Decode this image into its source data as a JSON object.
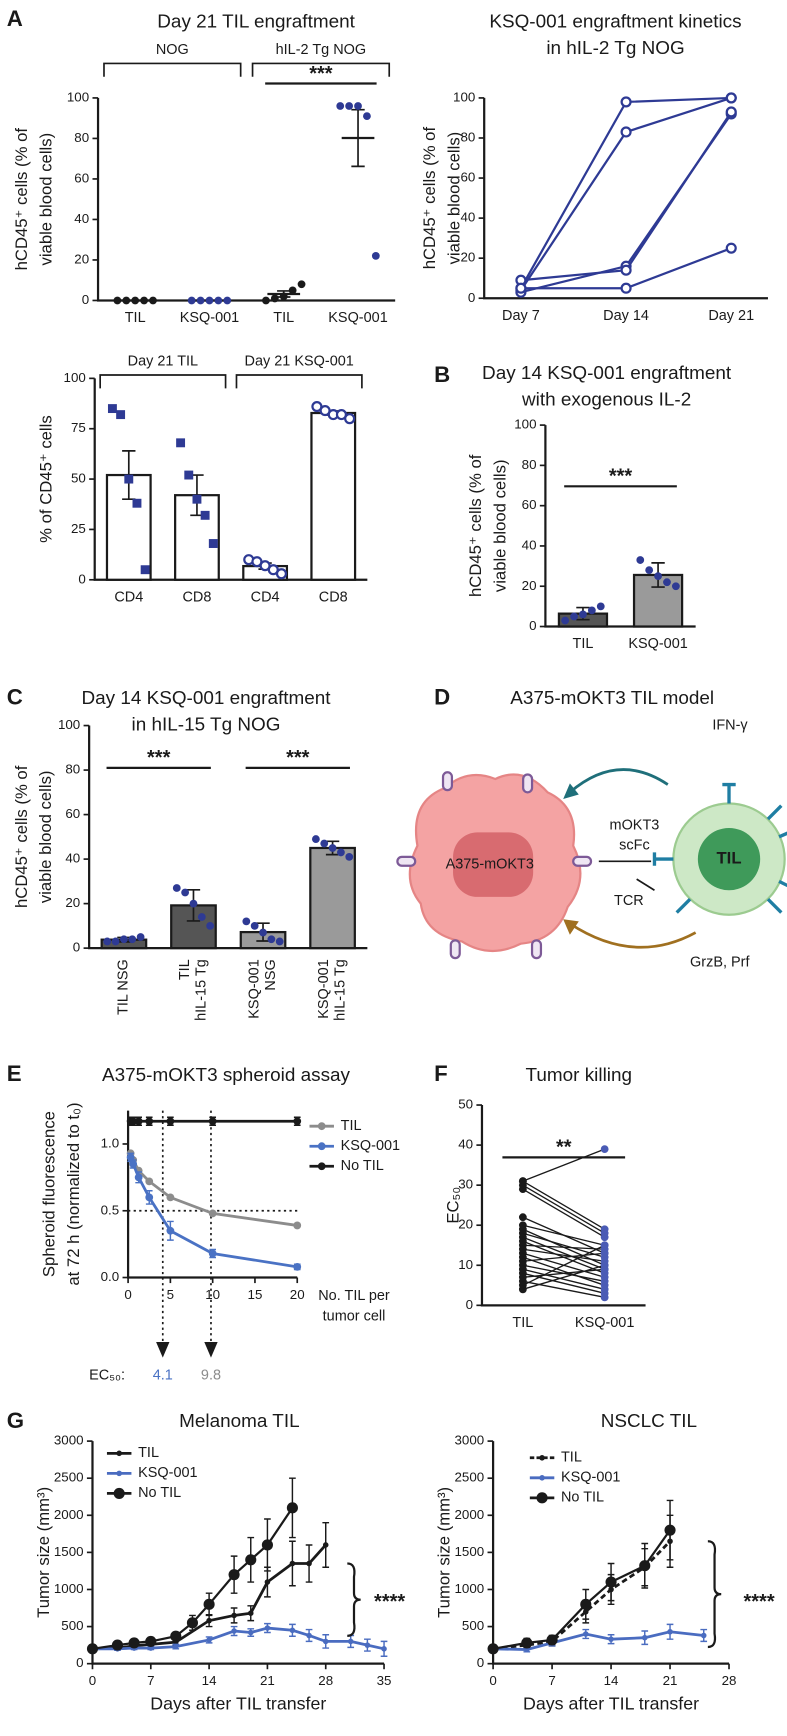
{
  "panel_labels": [
    "A",
    "B",
    "C",
    "D",
    "E",
    "F",
    "G"
  ],
  "chart_data": [
    {
      "type": "dot",
      "title": [
        "Day 21 TIL engraftment"
      ],
      "ylabel": [
        "hCD45⁺ cells (% of",
        "viable blood cells)"
      ],
      "categories": [
        "TIL",
        "KSQ-001",
        "TIL",
        "KSQ-001"
      ],
      "groups": [
        "NOG",
        "hIL-2 Tg NOG"
      ],
      "points": [
        [
          0,
          0,
          0,
          0,
          0
        ],
        [
          0,
          0,
          0,
          0,
          0
        ],
        [
          0,
          1,
          2,
          5,
          8
        ],
        [
          96,
          96,
          96,
          91,
          22
        ]
      ],
      "means": [
        0,
        0,
        3.2,
        80.2
      ],
      "errors": [
        0,
        0,
        1.5,
        14
      ],
      "colors": [
        "#1a1a1a",
        "#2e3a94",
        "#1a1a1a",
        "#2e3a94"
      ],
      "markers": [
        "circle",
        "circle",
        "circle",
        "circle"
      ],
      "significance": [
        {
          "label": "***",
          "between": [
            2,
            3
          ]
        }
      ],
      "ylim": [
        0,
        100
      ],
      "yticks": [
        0,
        20,
        40,
        60,
        80,
        100
      ]
    },
    {
      "type": "line",
      "title": [
        "KSQ-001 engraftment kinetics",
        "in hIL-2 Tg NOG"
      ],
      "ylabel": [
        "hCD45⁺ cells (% of",
        "viable blood cells)"
      ],
      "categories": [
        "Day 7",
        "Day 14",
        "Day 21"
      ],
      "marker": "open-circle",
      "series": [
        {
          "color": "#2e3a94",
          "values": [
            5,
            98,
            100
          ]
        },
        {
          "color": "#2e3a94",
          "values": [
            4,
            83,
            100
          ]
        },
        {
          "color": "#2e3a94",
          "values": [
            3,
            16,
            92
          ]
        },
        {
          "color": "#2e3a94",
          "values": [
            9,
            14,
            93
          ]
        },
        {
          "color": "#2e3a94",
          "values": [
            5,
            5,
            25
          ]
        }
      ],
      "ylim": [
        0,
        100
      ],
      "yticks": [
        0,
        20,
        40,
        60,
        80,
        100
      ]
    },
    {
      "type": "bar",
      "ylabel": [
        "% of CD45⁺ cells"
      ],
      "categories": [
        "CD4",
        "CD8",
        "CD4",
        "CD8"
      ],
      "groups": [
        "Day 21 TIL",
        "Day 21 KSQ-001"
      ],
      "points": [
        [
          85,
          82,
          50,
          38,
          5
        ],
        [
          68,
          52,
          40,
          32,
          18
        ],
        [
          10,
          9,
          7,
          5,
          3
        ],
        [
          86,
          84,
          82,
          82,
          80
        ]
      ],
      "means": [
        52,
        42,
        6.8,
        82.8
      ],
      "errors": [
        12,
        10,
        1.5,
        1
      ],
      "colors": [
        "#2e3a94",
        "#2e3a94",
        "#2e3a94",
        "#2e3a94"
      ],
      "markers": [
        "square",
        "square",
        "open-circle",
        "open-circle"
      ],
      "bar_colors": [
        "#ffffff",
        "#ffffff",
        "#ffffff",
        "#ffffff"
      ],
      "ylim": [
        0,
        100
      ],
      "yticks": [
        0,
        25,
        50,
        75,
        100
      ]
    },
    {
      "type": "bar",
      "title": [
        "Day 14 KSQ-001 engraftment",
        "with exogenous IL-2"
      ],
      "ylabel": [
        "hCD45⁺ cells (% of",
        "viable blood cells)"
      ],
      "categories": [
        "TIL",
        "KSQ-001"
      ],
      "points": [
        [
          3,
          5,
          6,
          8,
          10
        ],
        [
          33,
          28,
          25,
          22,
          20
        ]
      ],
      "means": [
        6.4,
        25.6
      ],
      "errors": [
        3,
        6
      ],
      "colors": [
        "#2e3a94",
        "#2e3a94"
      ],
      "markers": [
        "circle",
        "circle"
      ],
      "bar_colors": [
        "#555555",
        "#9a9a9a"
      ],
      "significance": [
        {
          "label": "***",
          "between": [
            0,
            1
          ]
        }
      ],
      "ylim": [
        0,
        100
      ],
      "yticks": [
        0,
        20,
        40,
        60,
        80,
        100
      ]
    },
    {
      "type": "bar",
      "title": [
        "Day 14 KSQ-001 engraftment",
        "in hIL-15 Tg NOG"
      ],
      "ylabel": [
        "hCD45⁺ cells (% of",
        "viable blood cells)"
      ],
      "categories": [
        [
          "TIL NSG"
        ],
        [
          "TIL",
          "hIL-15 Tg"
        ],
        [
          "KSQ-001",
          "NSG"
        ],
        [
          "KSQ-001",
          "hIL-15 Tg"
        ]
      ],
      "points": [
        [
          3,
          3,
          4,
          4,
          5
        ],
        [
          27,
          25,
          20,
          14,
          10
        ],
        [
          12,
          10,
          7,
          4,
          3
        ],
        [
          49,
          47,
          45,
          43,
          41
        ]
      ],
      "means": [
        3.8,
        19.2,
        7.2,
        45
      ],
      "errors": [
        1,
        7,
        4,
        3
      ],
      "colors": [
        "#2e3a94",
        "#2e3a94",
        "#2e3a94",
        "#2e3a94"
      ],
      "markers": [
        "circle",
        "circle",
        "circle",
        "circle"
      ],
      "bar_colors": [
        "#555555",
        "#555555",
        "#9a9a9a",
        "#9a9a9a"
      ],
      "significance": [
        {
          "label": "***",
          "between": [
            0,
            1
          ]
        },
        {
          "label": "***",
          "between": [
            2,
            3
          ]
        }
      ],
      "ylim": [
        0,
        100
      ],
      "yticks": [
        0,
        20,
        40,
        60,
        80,
        100
      ]
    },
    {
      "type": "line",
      "title": [
        "A375-mOKT3 spheroid assay"
      ],
      "ylabel": [
        "Spheroid fluorescence",
        "at 72 h (normalized to t₀)"
      ],
      "xlabel": [
        "No. TIL per",
        "tumor cell"
      ],
      "x": [
        0.3,
        0.6,
        1.25,
        2.5,
        5,
        10,
        20
      ],
      "marker": "circle",
      "series": [
        {
          "name": "TIL",
          "color": "#8c8c8c",
          "values": [
            0.93,
            0.88,
            0.8,
            0.72,
            0.6,
            0.48,
            0.39
          ]
        },
        {
          "name": "KSQ-001",
          "color": "#4a72c4",
          "values": [
            0.9,
            0.85,
            0.75,
            0.6,
            0.35,
            0.18,
            0.08
          ],
          "errors": [
            0.03,
            0.03,
            0.04,
            0.05,
            0.07,
            0.03,
            0.02
          ]
        },
        {
          "name": "No TIL",
          "color": "#1a1a1a",
          "values": [
            1.17,
            1.17,
            1.17,
            1.17,
            1.17,
            1.17,
            1.17
          ],
          "errors": [
            0.03,
            0.03,
            0.03,
            0.03,
            0.03,
            0.03,
            0.03
          ]
        }
      ],
      "hline": 0.5,
      "ec50_label": "EC₅₀:",
      "ec50": [
        4.1,
        9.8
      ],
      "ec50_colors": [
        "#4a72c4",
        "#8c8c8c"
      ],
      "xlim": [
        0,
        20
      ],
      "xticks": [
        0,
        5,
        10,
        15,
        20
      ],
      "ylim": [
        0,
        1.25
      ],
      "yticks": [
        {
          "value": 0,
          "label": "0.0"
        },
        {
          "value": 0.5,
          "label": "0.5"
        },
        {
          "value": 1,
          "label": "1.0"
        }
      ]
    },
    {
      "type": "paired",
      "title": [
        "Tumor killing"
      ],
      "ylabel": [
        "EC₅₀"
      ],
      "categories": [
        "TIL",
        "KSQ-001"
      ],
      "values": [
        [
          31,
          30,
          31,
          29,
          22,
          20,
          19,
          18,
          17,
          16,
          15,
          14,
          13,
          12,
          11,
          10,
          9,
          8,
          7,
          6,
          5,
          4
        ],
        [
          39,
          18,
          19,
          17,
          13,
          15,
          10,
          12,
          9,
          8,
          14,
          11,
          7,
          5,
          13,
          6,
          4,
          3,
          9,
          2,
          15,
          10
        ]
      ],
      "colors": [
        "#1a1a1a",
        "#4a5bb5"
      ],
      "significance": [
        {
          "label": "**",
          "between": [
            0,
            1
          ]
        }
      ],
      "ylim": [
        0,
        50
      ],
      "yticks": [
        0,
        10,
        20,
        30,
        40,
        50
      ]
    },
    {
      "type": "line",
      "title": [
        "Melanoma TIL"
      ],
      "ylabel": [
        "Tumor size (mm³)"
      ],
      "xlabel": [
        "Days after TIL transfer"
      ],
      "annotation": "****",
      "series": [
        {
          "name": "TIL",
          "color": "#1a1a1a",
          "marker": "small-circle",
          "x": [
            0,
            3,
            5,
            7,
            10,
            14,
            17,
            19,
            21,
            24,
            26,
            28
          ],
          "values": [
            200,
            210,
            240,
            260,
            290,
            580,
            650,
            680,
            1100,
            1350,
            1350,
            1600
          ],
          "errors": [
            20,
            20,
            30,
            30,
            40,
            80,
            100,
            100,
            200,
            300,
            250,
            300
          ]
        },
        {
          "name": "KSQ-001",
          "color": "#4a6cc0",
          "marker": "small-circle",
          "x": [
            0,
            3,
            5,
            7,
            10,
            14,
            17,
            19,
            21,
            24,
            26,
            28,
            31,
            33,
            35
          ],
          "values": [
            200,
            200,
            210,
            210,
            230,
            320,
            440,
            420,
            480,
            450,
            380,
            300,
            300,
            250,
            200
          ],
          "errors": [
            20,
            20,
            20,
            20,
            30,
            40,
            60,
            50,
            60,
            80,
            80,
            90,
            80,
            80,
            100
          ]
        },
        {
          "name": "No TIL",
          "color": "#1a1a1a",
          "marker": "big-circle",
          "x": [
            0,
            3,
            5,
            7,
            10,
            12,
            14,
            17,
            19,
            21,
            24
          ],
          "values": [
            200,
            250,
            280,
            300,
            370,
            550,
            800,
            1200,
            1400,
            1600,
            2100
          ],
          "errors": [
            20,
            30,
            30,
            40,
            50,
            100,
            150,
            250,
            300,
            350,
            400
          ]
        }
      ],
      "xlim": [
        0,
        35
      ],
      "xticks": [
        0,
        7,
        14,
        21,
        28,
        35
      ],
      "ylim": [
        0,
        3000
      ],
      "yticks": [
        0,
        500,
        1000,
        1500,
        2000,
        2500,
        3000
      ]
    },
    {
      "type": "line",
      "title": [
        "NSCLC TIL"
      ],
      "ylabel": [
        "Tumor size (mm³)"
      ],
      "xlabel": [
        "Days after TIL transfer"
      ],
      "annotation": "****",
      "series": [
        {
          "name": "TIL",
          "color": "#1a1a1a",
          "marker": "small-circle",
          "dash": true,
          "x": [
            0,
            4,
            7,
            11,
            14,
            18,
            21
          ],
          "values": [
            200,
            250,
            300,
            700,
            1000,
            1300,
            1650
          ],
          "errors": [
            20,
            50,
            60,
            150,
            200,
            250,
            350
          ]
        },
        {
          "name": "KSQ-001",
          "color": "#4a6cc0",
          "marker": "small-circle",
          "x": [
            0,
            4,
            7,
            11,
            14,
            18,
            21,
            25
          ],
          "values": [
            200,
            190,
            280,
            400,
            330,
            350,
            430,
            380
          ],
          "errors": [
            20,
            30,
            40,
            60,
            60,
            90,
            100,
            80
          ]
        },
        {
          "name": "No TIL",
          "color": "#1a1a1a",
          "marker": "big-circle",
          "x": [
            0,
            4,
            7,
            11,
            14,
            18,
            21
          ],
          "values": [
            200,
            280,
            320,
            800,
            1100,
            1320,
            1800
          ],
          "errors": [
            20,
            60,
            60,
            200,
            250,
            300,
            400
          ]
        }
      ],
      "xlim": [
        0,
        28
      ],
      "xticks": [
        0,
        7,
        14,
        21,
        28
      ],
      "ylim": [
        0,
        3000
      ],
      "yticks": [
        0,
        500,
        1000,
        1500,
        2000,
        2500,
        3000
      ]
    }
  ],
  "diagram": {
    "title": "A375-mOKT3 TIL model",
    "ifn": "IFN-γ",
    "target": "A375-mOKT3",
    "mokt3": "mOKT3",
    "scfc": "scFc",
    "til": "TIL",
    "tcr": "TCR",
    "grzb": "GrzB, Prf"
  }
}
